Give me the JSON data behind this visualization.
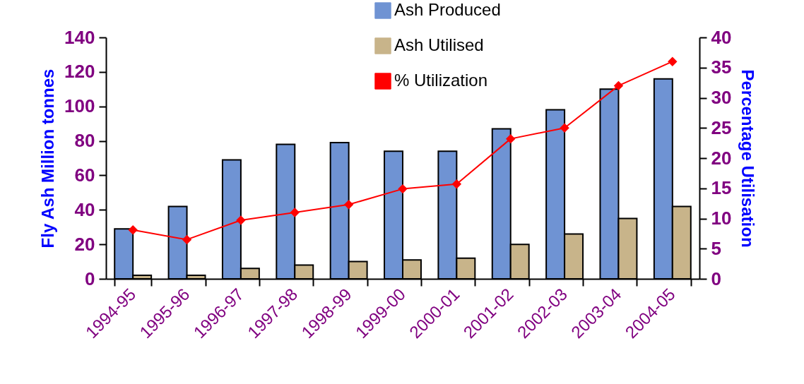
{
  "chart_data": {
    "type": "bar",
    "xlabel": null,
    "ylabel": "Fly Ash Million tonnes",
    "y2label": "Percentage Utilisation",
    "categories": [
      "1994-95",
      "1995-96",
      "1996-97",
      "1997-98",
      "1998-99",
      "1999-00",
      "2000-01",
      "2001-02",
      "2002-03",
      "2003-04",
      "2004-05"
    ],
    "series": [
      {
        "name": "Ash Produced",
        "color": "#6f93d3",
        "values": [
          29,
          42,
          69,
          78,
          79,
          74,
          74,
          87,
          98,
          110,
          116
        ]
      },
      {
        "name": "Ash Utilised",
        "color": "#c8b48a",
        "values": [
          2,
          2,
          6,
          8,
          10,
          11,
          12,
          20,
          26,
          35,
          42
        ]
      },
      {
        "name": "% Utilization",
        "type": "line",
        "axis": "y2",
        "color": "#ff0000",
        "marker": "diamond",
        "values": [
          8.1,
          6.5,
          9.7,
          11,
          12.3,
          14.9,
          15.7,
          23.2,
          25,
          32,
          36
        ]
      }
    ],
    "ylim": [
      0,
      140
    ],
    "yticks": [
      0,
      20,
      40,
      60,
      80,
      100,
      120,
      140
    ],
    "y2lim": [
      0,
      40
    ],
    "y2ticks": [
      0,
      5,
      10,
      15,
      20,
      25,
      30,
      35,
      40
    ],
    "grid": false,
    "legend": "top"
  }
}
